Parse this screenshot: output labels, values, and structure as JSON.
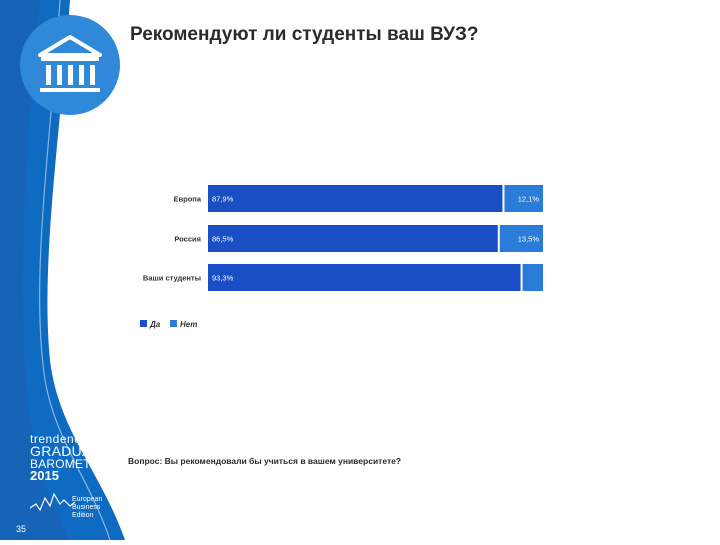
{
  "title": "Рекомендуют ли студенты ваш ВУЗ?",
  "question": "Вопрос: Вы рекомендовали бы учиться в вашем университете?",
  "page_number": "35",
  "icons": {
    "logo": "university-building-icon"
  },
  "colors": {
    "yes": "#1a4ec4",
    "no": "#2b7bd9",
    "side": "#0f6ac1",
    "side_light": "#2f88d8"
  },
  "barometer": {
    "line1": "trendence",
    "line2": "GRADUATE",
    "line3": "BAROMETER",
    "year": "2015",
    "edition_lines": [
      "European",
      "Business",
      "Edition"
    ]
  },
  "chart_data": {
    "type": "bar",
    "orientation": "horizontal",
    "stacked": true,
    "categories": [
      "Европа",
      "Россия",
      "Ваши студенты"
    ],
    "series": [
      {
        "name": "Да",
        "values": [
          87.9,
          86.5,
          93.3
        ],
        "labels": [
          "87,9%",
          "86,5%",
          "93,3%"
        ]
      },
      {
        "name": "Нет",
        "values": [
          12.1,
          13.5,
          6.7
        ],
        "labels": [
          "12,1%",
          "13,5%",
          ""
        ]
      }
    ],
    "xlim": [
      0,
      100
    ],
    "legend": "bottom-left",
    "grid": false
  }
}
